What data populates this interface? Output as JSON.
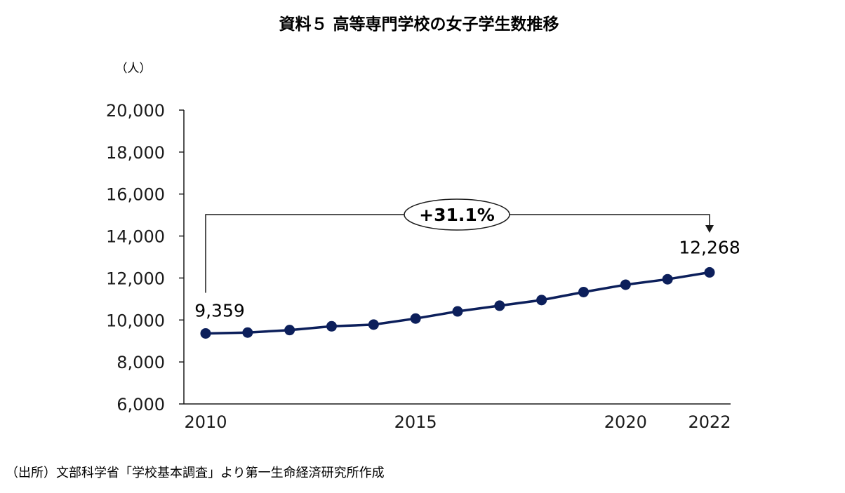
{
  "chart_data": {
    "type": "line",
    "title": "資料５ 高等専門学校の女子学生数推移",
    "unit_label": "（人）",
    "source": "（出所）文部科学省「学校基本調査」より第一生命経済研究所作成",
    "x": [
      2010,
      2011,
      2012,
      2013,
      2014,
      2015,
      2016,
      2017,
      2018,
      2019,
      2020,
      2021,
      2022
    ],
    "x_tick_labels": [
      "2010",
      "2015",
      "2020",
      "2022"
    ],
    "x_tick_values": [
      2010,
      2015,
      2020,
      2022
    ],
    "ylim": [
      6000,
      20000
    ],
    "y_tick_values": [
      6000,
      8000,
      10000,
      12000,
      14000,
      16000,
      18000,
      20000
    ],
    "y_tick_labels": [
      "6,000",
      "8,000",
      "10,000",
      "12,000",
      "14,000",
      "16,000",
      "18,000",
      "20,000"
    ],
    "series": [
      {
        "values": [
          9359,
          9400,
          9520,
          9700,
          9780,
          10070,
          10410,
          10680,
          10950,
          11330,
          11680,
          11940,
          12268
        ],
        "color": "#0c1f5b"
      }
    ],
    "data_labels": {
      "first": "9,359",
      "last": "12,268"
    },
    "annotation": {
      "text": "+31.1%"
    },
    "grid": false,
    "legend": "none"
  }
}
